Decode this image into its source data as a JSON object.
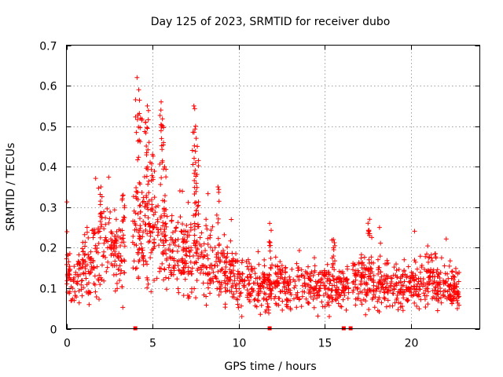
{
  "chart_data": {
    "type": "scatter",
    "title": "Day 125 of 2023, SRMTID for receiver dubo",
    "xlabel": "GPS time / hours",
    "ylabel": "SRMTID / TECUs",
    "xlim": [
      0,
      24
    ],
    "ylim": [
      0,
      0.7
    ],
    "xticks": [
      0,
      5,
      10,
      15,
      20
    ],
    "yticks": [
      0,
      0.1,
      0.2,
      0.3,
      0.4,
      0.5,
      0.6,
      0.7
    ],
    "xtick_labels": [
      "0",
      "5",
      "10",
      "15",
      "20"
    ],
    "ytick_labels": [
      "0",
      "0.1",
      "0.2",
      "0.3",
      "0.4",
      "0.5",
      "0.6",
      "0.7"
    ],
    "grid": true,
    "marker": "plus",
    "series_color": "#ff0000",
    "trend": [
      [
        0.0,
        0.13
      ],
      [
        0.5,
        0.12
      ],
      [
        1.0,
        0.14
      ],
      [
        1.5,
        0.17
      ],
      [
        2.0,
        0.19
      ],
      [
        2.5,
        0.2
      ],
      [
        3.0,
        0.17
      ],
      [
        3.5,
        0.19
      ],
      [
        4.0,
        0.19
      ],
      [
        4.5,
        0.21
      ],
      [
        5.0,
        0.22
      ],
      [
        5.5,
        0.21
      ],
      [
        6.0,
        0.2
      ],
      [
        6.5,
        0.19
      ],
      [
        7.0,
        0.18
      ],
      [
        7.5,
        0.18
      ],
      [
        8.0,
        0.16
      ],
      [
        8.5,
        0.15
      ],
      [
        9.0,
        0.14
      ],
      [
        9.5,
        0.13
      ],
      [
        10.0,
        0.12
      ],
      [
        10.5,
        0.11
      ],
      [
        11.0,
        0.1
      ],
      [
        11.5,
        0.1
      ],
      [
        12.0,
        0.11
      ],
      [
        13.0,
        0.11
      ],
      [
        14.0,
        0.1
      ],
      [
        15.0,
        0.11
      ],
      [
        16.0,
        0.1
      ],
      [
        17.0,
        0.12
      ],
      [
        18.0,
        0.11
      ],
      [
        19.0,
        0.1
      ],
      [
        20.0,
        0.1
      ],
      [
        21.0,
        0.12
      ],
      [
        22.0,
        0.1
      ],
      [
        22.8,
        0.09
      ]
    ],
    "gaps": [
      [
        3.4,
        3.8
      ],
      [
        16.4,
        16.6
      ]
    ],
    "peaks": [
      [
        4.1,
        0.62
      ],
      [
        4.2,
        0.59
      ],
      [
        4.3,
        0.52
      ],
      [
        4.6,
        0.51
      ],
      [
        4.7,
        0.55
      ],
      [
        4.8,
        0.46
      ],
      [
        5.0,
        0.43
      ],
      [
        5.5,
        0.56
      ],
      [
        5.6,
        0.5
      ],
      [
        5.7,
        0.4
      ],
      [
        7.4,
        0.55
      ],
      [
        7.5,
        0.5
      ],
      [
        7.6,
        0.45
      ],
      [
        7.5,
        0.41
      ],
      [
        8.8,
        0.35
      ],
      [
        2.0,
        0.35
      ],
      [
        3.3,
        0.33
      ],
      [
        17.6,
        0.27
      ],
      [
        11.8,
        0.26
      ],
      [
        15.5,
        0.22
      ]
    ],
    "flag_markers": [
      4.0,
      11.8,
      16.1,
      16.5
    ],
    "n_points": 1700
  }
}
